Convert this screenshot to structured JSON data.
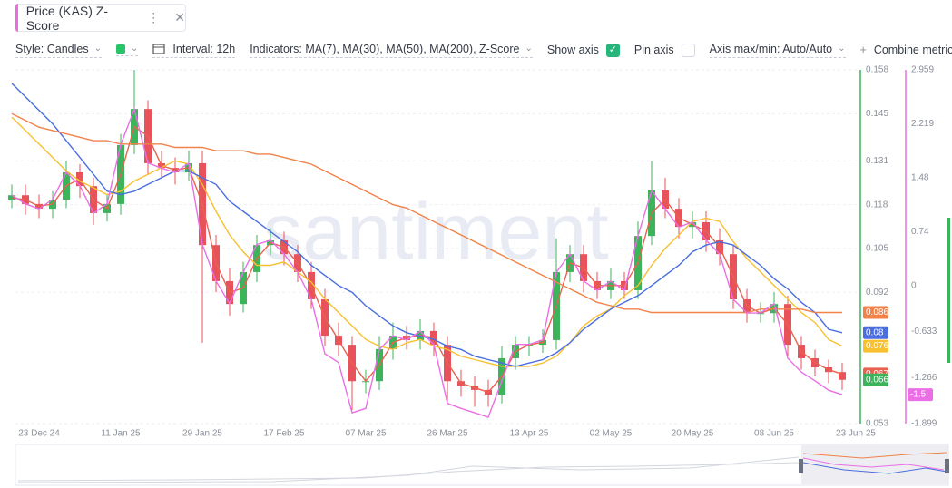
{
  "toolbar": {
    "style": "Style: Candles",
    "interval": "Interval: 12h",
    "indicators": "Indicators: MA(7), MA(30), MA(50), MA(200), Z-Score",
    "show_axis": "Show axis",
    "pin_axis": "Pin axis",
    "axis_maxmin": "Axis max/min: Auto/Auto",
    "combine": "Combine metrics"
  },
  "watermark": "santiment",
  "chart_data": {
    "type": "candlestick",
    "title": "Price (KAS) Z-Score",
    "categories": [
      null,
      null,
      "23 Dec 24",
      null,
      null,
      null,
      null,
      null,
      "11 Jan 25",
      null,
      null,
      null,
      null,
      null,
      "29 Jan 25",
      null,
      null,
      null,
      null,
      null,
      "17 Feb 25",
      null,
      null,
      null,
      null,
      null,
      "07 Mar 25",
      null,
      null,
      null,
      null,
      null,
      "26 Mar 25",
      null,
      null,
      null,
      null,
      null,
      "13 Apr 25",
      null,
      null,
      null,
      null,
      null,
      "02 May 25",
      null,
      null,
      null,
      null,
      null,
      "20 May 25",
      null,
      null,
      null,
      null,
      null,
      "08 Jun 25",
      null,
      null,
      null,
      null,
      null,
      "23 Jun 25"
    ],
    "open": [
      0.1195,
      0.1208,
      0.1182,
      0.1168,
      0.1195,
      0.1276,
      0.1235,
      0.1155,
      0.1182,
      0.1357,
      0.1464,
      0.1303,
      0.1289,
      0.1276,
      0.1303,
      0.106,
      0.0953,
      0.0885,
      0.098,
      0.106,
      0.1074,
      0.1033,
      0.098,
      0.0899,
      0.0791,
      0.0764,
      0.0656,
      0.0656,
      0.0751,
      0.0791,
      0.0778,
      0.0805,
      0.0764,
      0.0656,
      0.0643,
      0.063,
      0.0616,
      0.0724,
      0.0764,
      0.0764,
      0.0778,
      0.098,
      0.1033,
      0.0953,
      0.0926,
      0.0953,
      0.0926,
      0.1087,
      0.1222,
      0.1168,
      0.1114,
      0.1128,
      0.1074,
      0.1033,
      0.0899,
      0.0858,
      0.0858,
      0.0885,
      0.0764,
      0.0724,
      0.0697,
      0.0683,
      null
    ],
    "high": [
      0.124,
      0.124,
      0.121,
      0.122,
      0.131,
      0.13,
      0.126,
      0.121,
      0.139,
      0.158,
      0.149,
      0.134,
      0.132,
      0.134,
      0.134,
      0.109,
      0.099,
      0.101,
      0.109,
      0.111,
      0.11,
      0.106,
      0.101,
      0.093,
      0.083,
      0.079,
      0.069,
      0.079,
      0.083,
      0.082,
      0.084,
      0.083,
      0.079,
      0.069,
      0.067,
      0.066,
      0.076,
      0.079,
      0.079,
      0.081,
      0.108,
      0.106,
      0.106,
      0.098,
      0.099,
      0.098,
      0.113,
      0.131,
      0.126,
      0.12,
      0.116,
      0.116,
      0.111,
      0.106,
      0.093,
      0.089,
      0.092,
      0.091,
      0.079,
      0.075,
      0.072,
      0.071,
      null
    ],
    "low": [
      0.117,
      0.115,
      0.114,
      0.114,
      0.117,
      0.12,
      0.112,
      0.113,
      0.115,
      0.133,
      0.127,
      0.126,
      0.124,
      0.125,
      0.077,
      0.092,
      0.085,
      0.086,
      0.095,
      0.103,
      0.1,
      0.095,
      0.087,
      0.076,
      0.073,
      0.057,
      0.062,
      0.063,
      0.072,
      0.075,
      0.075,
      0.073,
      0.059,
      0.061,
      0.058,
      0.058,
      0.059,
      0.069,
      0.073,
      0.074,
      0.075,
      0.095,
      0.092,
      0.09,
      0.09,
      0.09,
      0.09,
      0.106,
      0.114,
      0.108,
      0.108,
      0.104,
      0.1,
      0.087,
      0.083,
      0.083,
      0.083,
      0.073,
      0.069,
      0.067,
      0.065,
      0.063,
      null
    ],
    "close": [
      0.1208,
      0.1182,
      0.1168,
      0.1195,
      0.1276,
      0.1235,
      0.1155,
      0.1182,
      0.1357,
      0.1464,
      0.1303,
      0.1289,
      0.1276,
      0.1303,
      0.106,
      0.0953,
      0.0885,
      0.098,
      0.106,
      0.1074,
      0.1033,
      0.098,
      0.0899,
      0.0791,
      0.0764,
      0.0656,
      0.0656,
      0.0751,
      0.0791,
      0.0778,
      0.0805,
      0.0764,
      0.0656,
      0.0643,
      0.063,
      0.0616,
      0.0724,
      0.0764,
      0.0764,
      0.0778,
      0.098,
      0.1033,
      0.0953,
      0.0926,
      0.0953,
      0.0926,
      0.1087,
      0.1222,
      0.1168,
      0.1114,
      0.1128,
      0.1074,
      0.1033,
      0.0899,
      0.0858,
      0.0858,
      0.0885,
      0.0764,
      0.0724,
      0.0697,
      0.0683,
      0.066,
      null
    ],
    "up_color": "#3db35b",
    "down_color": "#e8525a",
    "series": [
      {
        "color": "#e8614f",
        "values": [
          0.12,
          0.1195,
          0.1175,
          0.1182,
          0.1236,
          0.1256,
          0.1195,
          0.1169,
          0.127,
          0.1411,
          0.1384,
          0.1296,
          0.1283,
          0.129,
          0.1182,
          0.1007,
          0.0919,
          0.0933,
          0.102,
          0.1067,
          0.1054,
          0.1007,
          0.094,
          0.0845,
          0.0778,
          0.071,
          0.0656,
          0.0704,
          0.0771,
          0.0785,
          0.0792,
          0.0785,
          0.071,
          0.065,
          0.0637,
          0.0623,
          0.067,
          0.0744,
          0.0764,
          0.0771,
          0.0879,
          0.1007,
          0.0993,
          0.094,
          0.094,
          0.094,
          0.1007,
          0.1155,
          0.1195,
          0.1141,
          0.1121,
          0.1101,
          0.1054,
          0.0966,
          0.0879,
          0.0858,
          0.0872,
          0.0825,
          0.0744,
          0.0711,
          0.069,
          0.0677,
          null
        ]
      },
      {
        "color": "#f7c030",
        "values": [
          0.144,
          0.14,
          0.136,
          0.132,
          0.128,
          0.125,
          0.123,
          0.121,
          0.122,
          0.125,
          0.127,
          0.129,
          0.131,
          0.13,
          0.124,
          0.116,
          0.109,
          0.104,
          0.1,
          0.1,
          0.101,
          0.098,
          0.095,
          0.09,
          0.086,
          0.082,
          0.078,
          0.076,
          0.075,
          0.077,
          0.078,
          0.076,
          0.075,
          0.073,
          0.072,
          0.071,
          0.07,
          0.07,
          0.07,
          0.071,
          0.073,
          0.077,
          0.082,
          0.085,
          0.087,
          0.091,
          0.094,
          0.1,
          0.105,
          0.109,
          0.113,
          0.114,
          0.113,
          0.107,
          0.102,
          0.098,
          0.094,
          0.09,
          0.086,
          0.083,
          0.078,
          0.076,
          null
        ]
      },
      {
        "color": "#4a6ee0",
        "values": [
          0.154,
          0.15,
          0.146,
          0.142,
          0.137,
          0.132,
          0.127,
          0.122,
          0.121,
          0.122,
          0.124,
          0.126,
          0.128,
          0.128,
          0.126,
          0.124,
          0.119,
          0.116,
          0.113,
          0.11,
          0.107,
          0.104,
          0.1,
          0.097,
          0.094,
          0.092,
          0.088,
          0.085,
          0.082,
          0.08,
          0.079,
          0.078,
          0.076,
          0.075,
          0.073,
          0.072,
          0.071,
          0.07,
          0.071,
          0.072,
          0.074,
          0.077,
          0.081,
          0.084,
          0.087,
          0.089,
          0.091,
          0.094,
          0.097,
          0.1,
          0.104,
          0.106,
          0.107,
          0.106,
          0.103,
          0.1,
          0.096,
          0.093,
          0.089,
          0.086,
          0.081,
          0.08,
          null
        ]
      },
      {
        "color": "#f0824a",
        "values": [
          0.145,
          0.143,
          0.141,
          0.14,
          0.139,
          0.138,
          0.137,
          0.137,
          0.136,
          0.136,
          0.136,
          0.136,
          0.135,
          0.135,
          0.135,
          0.134,
          0.134,
          0.134,
          0.133,
          0.133,
          0.132,
          0.131,
          0.13,
          0.128,
          0.126,
          0.124,
          0.122,
          0.12,
          0.118,
          0.117,
          0.115,
          0.113,
          0.111,
          0.109,
          0.107,
          0.105,
          0.103,
          0.101,
          0.099,
          0.097,
          0.095,
          0.093,
          0.091,
          0.089,
          0.088,
          0.087,
          0.087,
          0.086,
          0.086,
          0.086,
          0.086,
          0.086,
          0.086,
          0.086,
          0.086,
          0.087,
          0.087,
          0.087,
          0.087,
          0.086,
          0.086,
          0.086,
          null
        ]
      },
      {
        "color": "#ea6fe4",
        "axis": "y2",
        "values": [
          1.24,
          1.12,
          1.05,
          1.18,
          1.55,
          1.37,
          0.99,
          1.12,
          1.93,
          2.42,
          1.68,
          1.61,
          1.55,
          1.68,
          0.56,
          0.06,
          -0.25,
          0.18,
          0.56,
          0.62,
          0.43,
          0.18,
          -0.19,
          -0.94,
          -1.06,
          -1.75,
          -1.69,
          -0.88,
          -0.69,
          -0.75,
          -0.63,
          -0.81,
          -1.62,
          -1.69,
          -1.75,
          -1.81,
          -1.31,
          -0.81,
          -0.81,
          -0.75,
          0.18,
          0.43,
          0.06,
          -0.07,
          0.06,
          -0.07,
          0.68,
          1.3,
          1.05,
          0.8,
          0.87,
          0.62,
          0.43,
          -0.19,
          -0.38,
          -0.38,
          -0.25,
          -1.0,
          -1.19,
          -1.31,
          -1.44,
          -1.5,
          null
        ]
      }
    ],
    "ylim": [
      0.0522,
      0.1599
    ],
    "yticks": [
      0.158,
      0.145,
      0.131,
      0.118,
      0.105,
      0.092,
      0.053
    ],
    "y2lim": [
      -1.935,
      3.046
    ],
    "y2ticks": [
      2.959,
      2.219,
      1.48,
      0.74,
      0,
      -0.633,
      -1.266,
      -1.899
    ],
    "grid": true
  }
}
